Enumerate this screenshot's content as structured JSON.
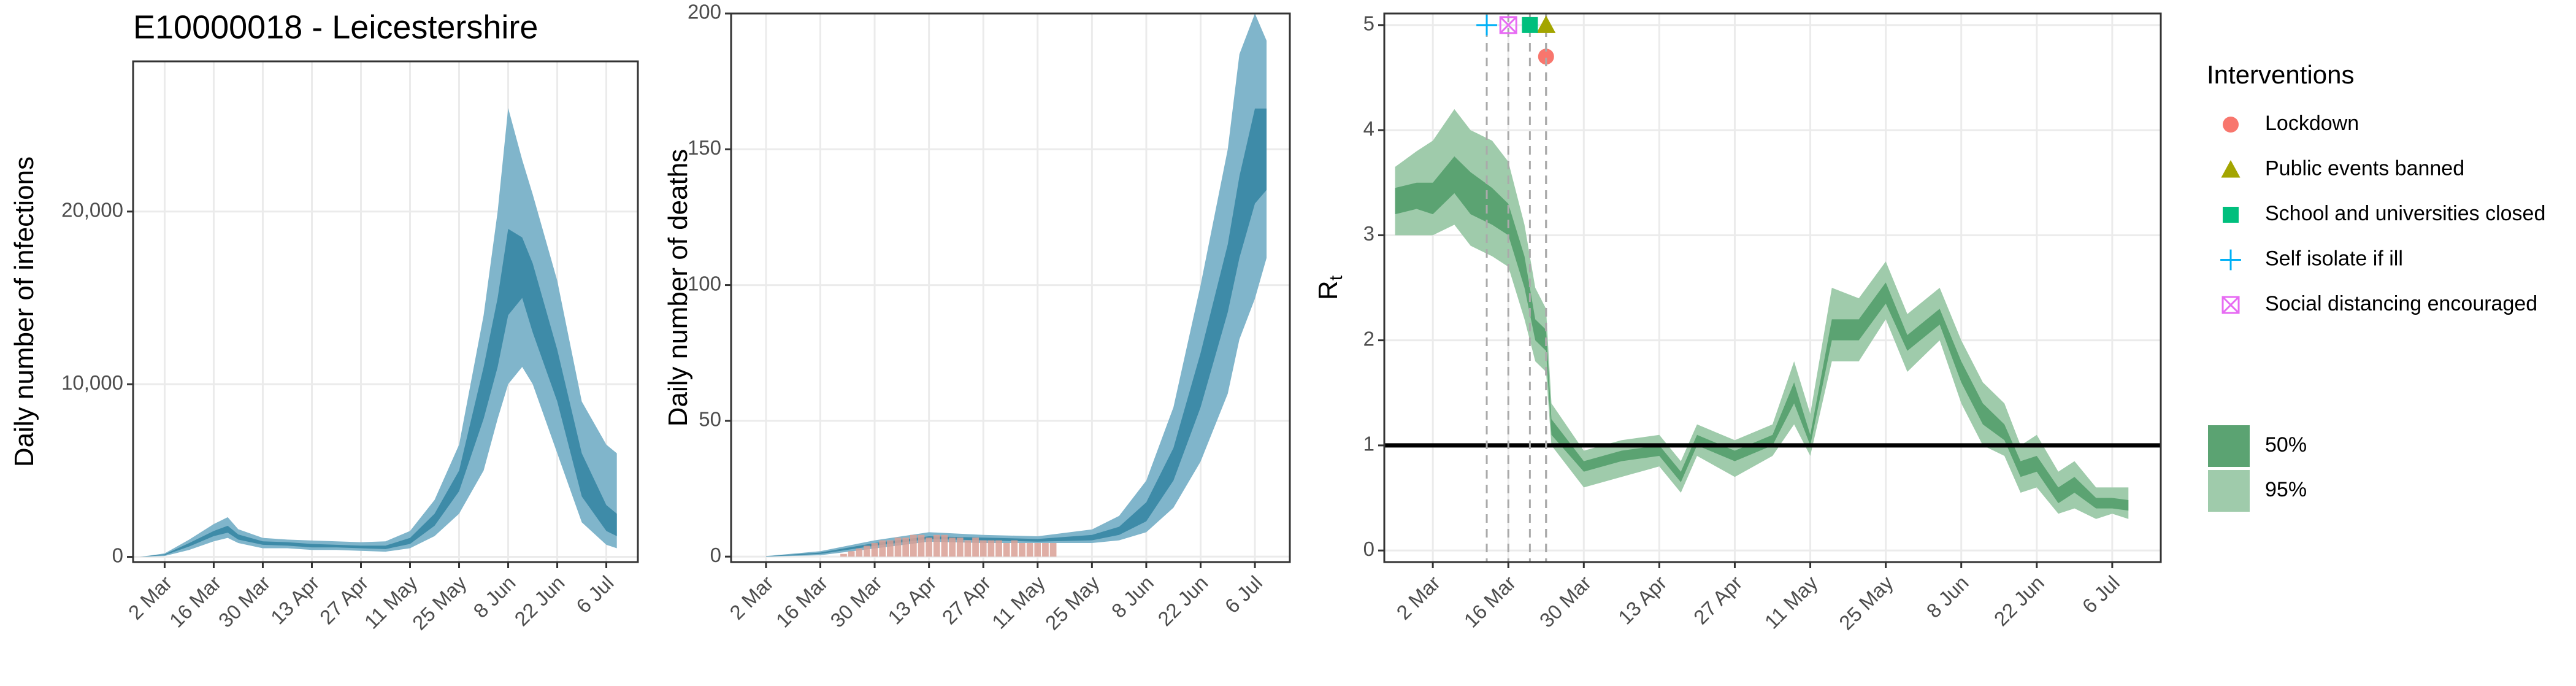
{
  "chart_data": [
    {
      "type": "band",
      "title": "E10000018 - Leicestershire",
      "ylabel": "Daily number of infections",
      "x": [
        "24 Feb",
        "2 Mar",
        "9 Mar",
        "16 Mar",
        "20 Mar",
        "23 Mar",
        "30 Mar",
        "6 Apr",
        "13 Apr",
        "20 Apr",
        "27 Apr",
        "4 May",
        "11 May",
        "18 May",
        "25 May",
        "1 Jun",
        "5 Jun",
        "8 Jun",
        "12 Jun",
        "15 Jun",
        "22 Jun",
        "29 Jun",
        "6 Jul",
        "9 Jul"
      ],
      "xlim": [
        "22 Feb",
        "15 Jul"
      ],
      "xticks": [
        "2 Mar",
        "16 Mar",
        "30 Mar",
        "13 Apr",
        "27 Apr",
        "11 May",
        "25 May",
        "8 Jun",
        "22 Jun",
        "6 Jul"
      ],
      "ylim": [
        -300,
        28700
      ],
      "yticks": [
        0,
        {
          "value": 10000,
          "label": "10,000"
        },
        {
          "value": 20000,
          "label": "20,000"
        }
      ],
      "grid": true,
      "series": [
        {
          "color": "#80b5cb",
          "low": [
            0,
            50,
            400,
            900,
            1100,
            800,
            500,
            500,
            400,
            400,
            350,
            300,
            500,
            1200,
            2500,
            5000,
            8000,
            10000,
            11000,
            10000,
            6000,
            2000,
            700,
            500
          ],
          "high": [
            0,
            200,
            1000,
            1900,
            2300,
            1600,
            1100,
            1000,
            950,
            900,
            850,
            900,
            1500,
            3300,
            6500,
            14000,
            20000,
            26000,
            23000,
            21000,
            16000,
            9000,
            6500,
            6000
          ]
        },
        {
          "color": "#3e8ba8",
          "low": [
            0,
            100,
            600,
            1200,
            1400,
            1000,
            700,
            650,
            550,
            550,
            500,
            450,
            750,
            1800,
            3800,
            8000,
            11000,
            14000,
            15000,
            13000,
            9000,
            3500,
            1500,
            1200
          ],
          "high": [
            0,
            150,
            800,
            1500,
            1800,
            1300,
            900,
            850,
            750,
            700,
            650,
            650,
            1100,
            2500,
            5000,
            11000,
            15000,
            19000,
            18500,
            17000,
            12000,
            6000,
            3000,
            2500
          ]
        }
      ]
    },
    {
      "type": "band",
      "ylabel": "Daily number of deaths",
      "x": [
        "2 Mar",
        "16 Mar",
        "30 Mar",
        "13 Apr",
        "27 Apr",
        "11 May",
        "25 May",
        "1 Jun",
        "8 Jun",
        "15 Jun",
        "22 Jun",
        "29 Jun",
        "2 Jul",
        "6 Jul",
        "9 Jul"
      ],
      "xlim": [
        "22 Feb",
        "15 Jul"
      ],
      "xticks": [
        "2 Mar",
        "16 Mar",
        "30 Mar",
        "13 Apr",
        "27 Apr",
        "11 May",
        "25 May",
        "8 Jun",
        "22 Jun",
        "6 Jul"
      ],
      "ylim": [
        -2,
        200
      ],
      "yticks": [
        0,
        50,
        100,
        150,
        200
      ],
      "grid": true,
      "series": [
        {
          "color": "#80b5cb",
          "low": [
            0,
            0.5,
            3,
            5.5,
            5,
            5,
            5,
            6,
            9,
            18,
            35,
            60,
            80,
            95,
            110
          ],
          "high": [
            0.2,
            2,
            6,
            9,
            8,
            7.5,
            10,
            15,
            28,
            55,
            100,
            150,
            185,
            200,
            190
          ]
        },
        {
          "color": "#3e8ba8",
          "low": [
            0,
            1,
            4,
            6.5,
            6,
            5.5,
            6,
            8,
            13,
            28,
            55,
            90,
            110,
            130,
            135
          ],
          "high": [
            0.1,
            1.5,
            5,
            7.5,
            7,
            6.5,
            8,
            11,
            20,
            40,
            75,
            115,
            140,
            165,
            165
          ]
        }
      ],
      "bars": {
        "color": "#d9a095",
        "x": [
          "22 Mar",
          "24 Mar",
          "26 Mar",
          "28 Mar",
          "30 Mar",
          "1 Apr",
          "3 Apr",
          "5 Apr",
          "7 Apr",
          "9 Apr",
          "11 Apr",
          "13 Apr",
          "15 Apr",
          "17 Apr",
          "19 Apr",
          "21 Apr",
          "23 Apr",
          "25 Apr",
          "27 Apr",
          "29 Apr",
          "1 May",
          "3 May",
          "5 May",
          "7 May",
          "9 May",
          "11 May",
          "13 May",
          "15 May"
        ],
        "values": [
          1,
          2,
          3,
          4,
          5,
          6,
          6,
          7,
          7,
          8,
          8,
          7,
          8,
          8,
          7,
          7,
          6,
          7,
          6,
          6,
          6,
          5,
          6,
          5,
          5,
          5,
          5,
          5
        ]
      }
    },
    {
      "type": "band",
      "ylabel": "R",
      "ylabel_subscript": "t",
      "x": [
        "24 Feb",
        "28 Feb",
        "2 Mar",
        "6 Mar",
        "9 Mar",
        "13 Mar",
        "16 Mar",
        "19 Mar",
        "21 Mar",
        "23 Mar",
        "24 Mar",
        "30 Mar",
        "6 Apr",
        "13 Apr",
        "17 Apr",
        "20 Apr",
        "27 Apr",
        "4 May",
        "8 May",
        "11 May",
        "15 May",
        "20 May",
        "25 May",
        "29 May",
        "4 Jun",
        "8 Jun",
        "12 Jun",
        "16 Jun",
        "19 Jun",
        "22 Jun",
        "26 Jun",
        "29 Jun",
        "3 Jul",
        "6 Jul",
        "9 Jul"
      ],
      "xlim": [
        "22 Feb",
        "15 Jul"
      ],
      "xticks": [
        "2 Mar",
        "16 Mar",
        "30 Mar",
        "13 Apr",
        "27 Apr",
        "11 May",
        "25 May",
        "8 Jun",
        "22 Jun",
        "6 Jul"
      ],
      "ylim": [
        -0.11,
        5.11
      ],
      "yticks": [
        0,
        1,
        2,
        3,
        4,
        5
      ],
      "grid": true,
      "hline": 1,
      "series": [
        {
          "name": "95%",
          "color": "#9fcbab",
          "low": [
            3.0,
            3.0,
            3.0,
            3.1,
            2.9,
            2.8,
            2.7,
            2.2,
            1.8,
            1.7,
            1.0,
            0.6,
            0.7,
            0.8,
            0.55,
            0.9,
            0.7,
            0.9,
            1.2,
            0.9,
            1.8,
            1.8,
            2.2,
            1.7,
            2.0,
            1.4,
            1.0,
            0.9,
            0.55,
            0.6,
            0.35,
            0.4,
            0.3,
            0.35,
            0.3
          ],
          "high": [
            3.65,
            3.8,
            3.9,
            4.2,
            4.0,
            3.9,
            3.7,
            3.1,
            2.5,
            2.3,
            1.4,
            0.95,
            1.05,
            1.1,
            0.85,
            1.2,
            1.05,
            1.2,
            1.8,
            1.3,
            2.5,
            2.4,
            2.75,
            2.25,
            2.5,
            2.0,
            1.6,
            1.4,
            1.0,
            1.1,
            0.75,
            0.85,
            0.6,
            0.6,
            0.6
          ]
        },
        {
          "name": "50%",
          "color": "#5ba372",
          "low": [
            3.2,
            3.25,
            3.2,
            3.4,
            3.2,
            3.1,
            3.0,
            2.5,
            2.0,
            1.9,
            1.1,
            0.75,
            0.85,
            0.9,
            0.65,
            1.0,
            0.85,
            1.0,
            1.4,
            1.0,
            2.0,
            2.0,
            2.35,
            1.9,
            2.15,
            1.6,
            1.2,
            1.05,
            0.7,
            0.75,
            0.45,
            0.55,
            0.4,
            0.4,
            0.38
          ],
          "high": [
            3.45,
            3.5,
            3.5,
            3.75,
            3.6,
            3.45,
            3.3,
            2.8,
            2.2,
            2.1,
            1.25,
            0.85,
            0.95,
            1.0,
            0.75,
            1.1,
            0.95,
            1.1,
            1.6,
            1.1,
            2.2,
            2.2,
            2.55,
            2.05,
            2.3,
            1.8,
            1.4,
            1.2,
            0.85,
            0.9,
            0.6,
            0.7,
            0.5,
            0.5,
            0.48
          ]
        }
      ],
      "interventions": {
        "title": "Interventions",
        "items": [
          {
            "name": "Lockdown",
            "date": "23 Mar",
            "y": 4.7,
            "color": "#f8766d",
            "shape": "circle"
          },
          {
            "name": "Public events banned",
            "date": "23 Mar",
            "y": 5,
            "color": "#a3a500",
            "shape": "triangle"
          },
          {
            "name": "School and universities closed",
            "date": "20 Mar",
            "y": 5,
            "color": "#00bf7d",
            "shape": "square"
          },
          {
            "name": "Self isolate if ill",
            "date": "12 Mar",
            "y": 5,
            "color": "#00b0f6",
            "shape": "plus"
          },
          {
            "name": "Social distancing encouraged",
            "date": "16 Mar",
            "y": 5,
            "color": "#e76bf3",
            "shape": "boxx"
          }
        ]
      }
    }
  ]
}
